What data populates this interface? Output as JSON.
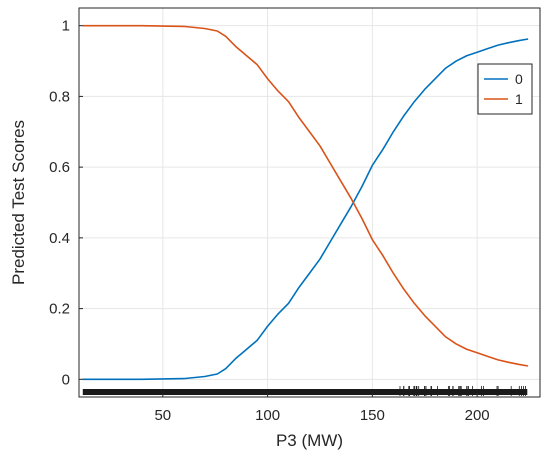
{
  "chart_data": {
    "type": "line",
    "xlabel": "P3 (MW)",
    "ylabel": "Predicted Test Scores",
    "xlim": [
      10,
      230
    ],
    "ylim": [
      -0.05,
      1.05
    ],
    "xticks": [
      50,
      100,
      150,
      200
    ],
    "yticks": [
      0,
      0.2,
      0.4,
      0.6,
      0.8,
      1
    ],
    "grid": true,
    "legend_position": "top-right",
    "rug": true,
    "series": [
      {
        "name": "0",
        "color": "#0072bd",
        "x": [
          12,
          40,
          60,
          70,
          76,
          80,
          85,
          90,
          95,
          100,
          105,
          110,
          115,
          120,
          125,
          130,
          135,
          140,
          145,
          150,
          155,
          160,
          165,
          170,
          175,
          180,
          185,
          190,
          195,
          200,
          205,
          210,
          215,
          220,
          224
        ],
        "y": [
          0,
          0,
          0.002,
          0.008,
          0.015,
          0.03,
          0.06,
          0.085,
          0.11,
          0.15,
          0.185,
          0.215,
          0.26,
          0.3,
          0.34,
          0.39,
          0.44,
          0.49,
          0.545,
          0.605,
          0.65,
          0.7,
          0.745,
          0.785,
          0.82,
          0.85,
          0.88,
          0.9,
          0.915,
          0.925,
          0.935,
          0.945,
          0.952,
          0.958,
          0.962
        ]
      },
      {
        "name": "1",
        "color": "#d95319",
        "x": [
          12,
          40,
          60,
          70,
          76,
          80,
          85,
          90,
          95,
          100,
          105,
          110,
          115,
          120,
          125,
          130,
          135,
          140,
          145,
          150,
          155,
          160,
          165,
          170,
          175,
          180,
          185,
          190,
          195,
          200,
          205,
          210,
          215,
          220,
          224
        ],
        "y": [
          1,
          1,
          0.998,
          0.992,
          0.985,
          0.97,
          0.94,
          0.915,
          0.89,
          0.85,
          0.815,
          0.785,
          0.74,
          0.7,
          0.66,
          0.61,
          0.56,
          0.51,
          0.455,
          0.395,
          0.35,
          0.3,
          0.255,
          0.215,
          0.18,
          0.15,
          0.12,
          0.1,
          0.085,
          0.075,
          0.065,
          0.055,
          0.048,
          0.042,
          0.038
        ]
      }
    ]
  }
}
